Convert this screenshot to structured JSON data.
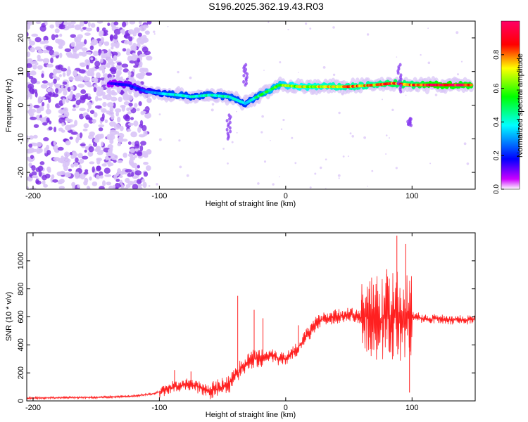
{
  "title": "S196.2025.362.19.43.R03",
  "colors": {
    "snr_line": "#ff2020",
    "axis": "#000000",
    "spectro_noise": "#7a2be2",
    "spectro_noise_light": "#d9c4f7"
  },
  "chart_data": [
    {
      "type": "heatmap",
      "name": "spectrogram",
      "xlabel": "Height of straight line (km)",
      "ylabel": "Frequency (Hz)",
      "xlim": [
        -205,
        150
      ],
      "ylim": [
        -25,
        25
      ],
      "xticks": [
        -200,
        -100,
        0,
        100
      ],
      "yticks": [
        -20,
        -10,
        0,
        10,
        20
      ],
      "colorbar": {
        "label": "Normalized spectral amplitude",
        "range": [
          0,
          1
        ],
        "ticks": [
          0.0,
          0.2,
          0.4,
          0.6,
          0.8
        ],
        "tick_labels": [
          "0.0",
          "0.2",
          "0.4",
          "0.6",
          "0.8"
        ],
        "colormap": [
          "#ff0000",
          "#ffff00",
          "#00ff00",
          "#00ffff",
          "#0000ff",
          "#ff00ff"
        ]
      },
      "noise_region": {
        "x_from": -205,
        "x_to": -108,
        "freq_from": -25,
        "freq_to": 25
      },
      "ridge": [
        {
          "x": -140,
          "f": 6.5,
          "a": 0.15
        },
        {
          "x": -125,
          "f": 6.0,
          "a": 0.2
        },
        {
          "x": -110,
          "f": 4.0,
          "a": 0.25
        },
        {
          "x": -100,
          "f": 3.5,
          "a": 0.35
        },
        {
          "x": -85,
          "f": 3.0,
          "a": 0.45
        },
        {
          "x": -75,
          "f": 2.5,
          "a": 0.4
        },
        {
          "x": -60,
          "f": 3.0,
          "a": 0.45
        },
        {
          "x": -45,
          "f": 2.5,
          "a": 0.45
        },
        {
          "x": -32,
          "f": 0.5,
          "a": 0.4
        },
        {
          "x": -25,
          "f": 2.0,
          "a": 0.45
        },
        {
          "x": -15,
          "f": 4.0,
          "a": 0.55
        },
        {
          "x": -5,
          "f": 6.0,
          "a": 0.6
        },
        {
          "x": 10,
          "f": 5.5,
          "a": 0.7
        },
        {
          "x": 30,
          "f": 5.5,
          "a": 0.75
        },
        {
          "x": 50,
          "f": 5.5,
          "a": 0.8
        },
        {
          "x": 70,
          "f": 6.0,
          "a": 0.8
        },
        {
          "x": 85,
          "f": 6.5,
          "a": 0.9
        },
        {
          "x": 100,
          "f": 6.0,
          "a": 0.85
        },
        {
          "x": 115,
          "f": 6.0,
          "a": 1.0
        },
        {
          "x": 130,
          "f": 6.0,
          "a": 1.0
        },
        {
          "x": 148,
          "f": 6.0,
          "a": 0.95
        }
      ]
    },
    {
      "type": "line",
      "name": "snr",
      "xlabel": "Height of straight line (km)",
      "ylabel": "SNR (10 * v/v)",
      "xlim": [
        -205,
        150
      ],
      "ylim": [
        0,
        1200
      ],
      "xticks": [
        -200,
        -100,
        0,
        100
      ],
      "yticks": [
        0,
        200,
        400,
        600,
        800,
        1000
      ],
      "series": [
        {
          "name": "SNR",
          "x": [
            -205,
            -150,
            -120,
            -105,
            -95,
            -85,
            -75,
            -65,
            -55,
            -45,
            -38,
            -32,
            -25,
            -20,
            -15,
            -10,
            -5,
            0,
            5,
            10,
            15,
            20,
            25,
            30,
            40,
            50,
            60,
            65,
            70,
            75,
            80,
            85,
            90,
            95,
            100,
            105,
            110,
            120,
            130,
            140,
            150
          ],
          "values": [
            20,
            25,
            35,
            50,
            80,
            110,
            120,
            80,
            80,
            120,
            200,
            270,
            300,
            310,
            320,
            330,
            300,
            300,
            340,
            380,
            450,
            500,
            560,
            590,
            600,
            620,
            590,
            600,
            600,
            590,
            600,
            610,
            600,
            600,
            600,
            600,
            580,
            590,
            580,
            580,
            580
          ]
        }
      ],
      "spikes": [
        {
          "x": -88,
          "y": 220
        },
        {
          "x": -75,
          "y": 210
        },
        {
          "x": -38,
          "y": 750
        },
        {
          "x": -25,
          "y": 650
        },
        {
          "x": -18,
          "y": 590
        },
        {
          "x": 10,
          "y": 540
        },
        {
          "x": 60,
          "y": 720
        },
        {
          "x": 80,
          "y": 940
        },
        {
          "x": 88,
          "y": 1180
        },
        {
          "x": 95,
          "y": 1120
        },
        {
          "x": 98,
          "y": 60
        }
      ]
    }
  ]
}
